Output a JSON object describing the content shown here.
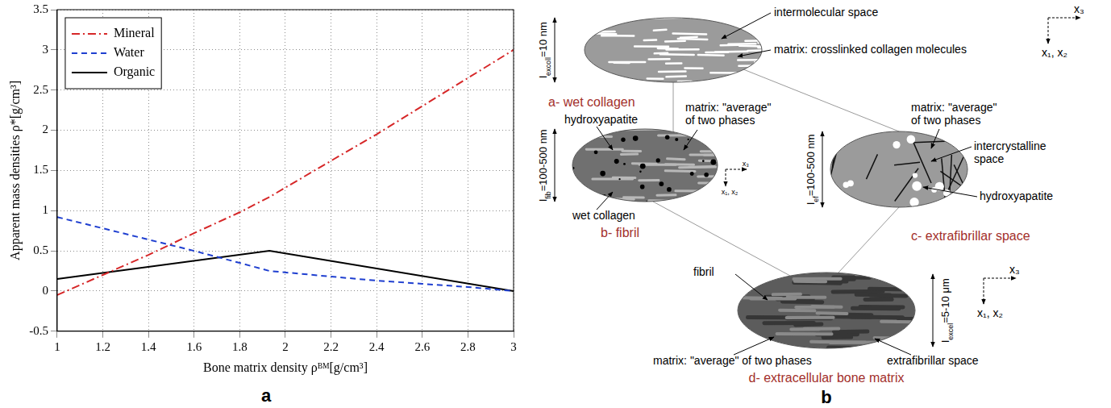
{
  "chart_data": {
    "type": "line",
    "x_label": "Bone matrix density ρᴮᴹ[g/cm³]",
    "y_label": "Apparent mass densities ρ*[g/cm³]",
    "xlim": [
      1,
      3
    ],
    "xticks": [
      1,
      1.2,
      1.4,
      1.6,
      1.8,
      2,
      2.2,
      2.4,
      2.6,
      2.8,
      3
    ],
    "ylim": [
      -0.5,
      3.5
    ],
    "yticks": [
      -0.5,
      0,
      0.5,
      1,
      1.5,
      2,
      2.5,
      3,
      3.5
    ],
    "grid": true,
    "legend": "top-left",
    "series": [
      {
        "name": "Mineral",
        "color": "#d62728",
        "line_style": "dashdot",
        "x": [
          1,
          1.2,
          1.4,
          1.6,
          1.8,
          1.93,
          2.2,
          2.4,
          2.6,
          2.8,
          3
        ],
        "values": [
          -0.05,
          0.2,
          0.45,
          0.72,
          0.98,
          1.17,
          1.62,
          1.95,
          2.3,
          2.65,
          3.0
        ]
      },
      {
        "name": "Water",
        "color": "#1f3fd0",
        "line_style": "dashed",
        "x": [
          1,
          1.2,
          1.4,
          1.6,
          1.8,
          1.93,
          2.2,
          2.4,
          2.6,
          2.8,
          3
        ],
        "values": [
          0.92,
          0.78,
          0.64,
          0.5,
          0.35,
          0.25,
          0.18,
          0.13,
          0.09,
          0.05,
          0.0
        ]
      },
      {
        "name": "Organic",
        "color": "#000000",
        "line_style": "solid",
        "x": [
          1,
          1.93,
          3
        ],
        "values": [
          0.15,
          0.5,
          0.0
        ]
      }
    ]
  },
  "panel_labels": [
    "a",
    "b"
  ],
  "diagram": {
    "axis_labels": {
      "horizontal": "x₃",
      "vertical": "x₁, x₂"
    },
    "panels": [
      {
        "id": "a",
        "title": "a- wet collagen",
        "scale": {
          "symbol": "l",
          "subscript": "excoll",
          "text": "=10 nm"
        },
        "labels": [
          "intermolecular space",
          "matrix: crosslinked collagen molecules"
        ]
      },
      {
        "id": "b",
        "title": "b- fibril",
        "scale": {
          "symbol": "l",
          "subscript": "fib",
          "text": "=100-500 nm"
        },
        "labels": [
          "hydroxyapatite",
          "matrix: \"average\" of two phases",
          "wet collagen"
        ]
      },
      {
        "id": "c",
        "title": "c- extrafibrillar space",
        "scale": {
          "symbol": "l",
          "subscript": "ef",
          "text": "=100-500 nm"
        },
        "labels": [
          "matrix: \"average\" of two phases",
          "intercrystalline space",
          "hydroxyapatite"
        ]
      },
      {
        "id": "d",
        "title": "d- extracellular bone matrix",
        "scale": {
          "symbol": "l",
          "subscript": "excel",
          "text": "=5-10 μm"
        },
        "labels": [
          "fibril",
          "matrix: \"average\" of two phases",
          "extrafibrillar space"
        ]
      }
    ]
  }
}
